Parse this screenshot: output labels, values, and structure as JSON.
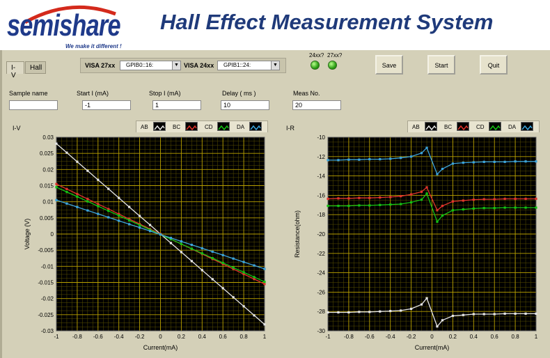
{
  "header": {
    "logo_text": "semishare",
    "logo_tagline": "We make it different !",
    "title": "Hall Effect Measurement System"
  },
  "tabs": [
    {
      "label": "I-V",
      "active": true
    },
    {
      "label": "Hall",
      "active": false
    }
  ],
  "visa": {
    "label_27": "VISA 27xx",
    "value_27": "GPIB0::16:",
    "label_24": "VISA 24xx",
    "value_24": "GPIB1::24:"
  },
  "indicators": {
    "led_label_24": "24xx?",
    "led_label_27": "27xx?",
    "led_color": "#3ec41a"
  },
  "buttons": {
    "save": "Save",
    "start": "Start",
    "quit": "Quit"
  },
  "params": {
    "sample_name_label": "Sample name",
    "sample_name_value": "",
    "start_label": "Start I (mA)",
    "start_value": "-1",
    "stop_label": "Stop I (mA)",
    "stop_value": "1",
    "delay_label": "Delay ( ms )",
    "delay_value": "10",
    "meas_label": "Meas No.",
    "meas_value": "20"
  },
  "legend": [
    "AB",
    "BC",
    "CD",
    "DA"
  ],
  "colors": {
    "AB": "#e6e6e6",
    "BC": "#e0342c",
    "CD": "#14c214",
    "DA": "#3ca4dc",
    "plot_bg": "#000000",
    "grid": "#b8a000"
  },
  "chart_data": [
    {
      "type": "line",
      "title": "I-V",
      "xlabel": "Current(mA)",
      "ylabel": "Voltage (V)",
      "xlim": [
        -1,
        1
      ],
      "ylim": [
        -0.03,
        0.03
      ],
      "xticks": [
        "-1",
        "-0.8",
        "-0.6",
        "-0.4",
        "-0.2",
        "0",
        "0.2",
        "0.4",
        "0.6",
        "0.8",
        "1"
      ],
      "yticks": [
        "0.03",
        "0.025",
        "0.02",
        "0.015",
        "0.01",
        "0.005",
        "0",
        "-0.005",
        "-0.01",
        "-0.015",
        "-0.02",
        "-0.025",
        "-0.03"
      ],
      "grid": true,
      "legend_position": "top-right",
      "series": [
        {
          "name": "AB",
          "x": [
            -1,
            1
          ],
          "y": [
            0.028,
            -0.028
          ]
        },
        {
          "name": "BC",
          "x": [
            -1,
            1
          ],
          "y": [
            0.0155,
            -0.0155
          ]
        },
        {
          "name": "CD",
          "x": [
            -1,
            1
          ],
          "y": [
            0.0145,
            -0.0148
          ]
        },
        {
          "name": "DA",
          "x": [
            -1,
            1
          ],
          "y": [
            0.0105,
            -0.0108
          ]
        }
      ]
    },
    {
      "type": "line",
      "title": "I-R",
      "xlabel": "Current(mA)",
      "ylabel": "Resistance(ohm)",
      "xlim": [
        -1,
        1
      ],
      "ylim": [
        -30,
        -8
      ],
      "xticks": [
        "-1",
        "-0.8",
        "-0.6",
        "-0.4",
        "-0.2",
        "0",
        "0.2",
        "0.4",
        "0.6",
        "0.8",
        "1"
      ],
      "yticks": [
        "-10",
        "-12",
        "-14",
        "-16",
        "-18",
        "-20",
        "-22",
        "-24",
        "-26",
        "-28",
        "-30"
      ],
      "grid": true,
      "legend_position": "top-right",
      "series": [
        {
          "name": "AB",
          "x": [
            -1,
            -0.9,
            -0.8,
            -0.7,
            -0.6,
            -0.5,
            -0.4,
            -0.3,
            -0.2,
            -0.1,
            -0.05,
            0.05,
            0.1,
            0.2,
            0.3,
            0.4,
            0.5,
            0.6,
            0.7,
            0.8,
            0.9,
            1
          ],
          "y": [
            -27.9,
            -27.9,
            -27.9,
            -27.85,
            -27.85,
            -27.8,
            -27.75,
            -27.7,
            -27.5,
            -27.0,
            -26.3,
            -29.5,
            -28.8,
            -28.3,
            -28.2,
            -28.1,
            -28.1,
            -28.1,
            -28.05,
            -28.05,
            -28.05,
            -28.05
          ]
        },
        {
          "name": "BC",
          "x": [
            -1,
            -0.9,
            -0.8,
            -0.7,
            -0.6,
            -0.5,
            -0.4,
            -0.3,
            -0.2,
            -0.1,
            -0.05,
            0.05,
            0.1,
            0.2,
            0.3,
            0.4,
            0.5,
            0.6,
            0.7,
            0.8,
            0.9,
            1
          ],
          "y": [
            -15.0,
            -14.95,
            -14.95,
            -14.9,
            -14.9,
            -14.85,
            -14.8,
            -14.7,
            -14.5,
            -14.2,
            -13.7,
            -16.3,
            -15.8,
            -15.3,
            -15.2,
            -15.1,
            -15.05,
            -15.05,
            -15.0,
            -15.0,
            -15.0,
            -15.0
          ]
        },
        {
          "name": "CD",
          "x": [
            -1,
            -0.9,
            -0.8,
            -0.7,
            -0.6,
            -0.5,
            -0.4,
            -0.3,
            -0.2,
            -0.1,
            -0.05,
            0.05,
            0.1,
            0.2,
            0.3,
            0.4,
            0.5,
            0.6,
            0.7,
            0.8,
            0.9,
            1
          ],
          "y": [
            -15.8,
            -15.8,
            -15.8,
            -15.75,
            -15.75,
            -15.7,
            -15.65,
            -15.6,
            -15.4,
            -15.1,
            -14.4,
            -17.6,
            -16.9,
            -16.3,
            -16.2,
            -16.1,
            -16.05,
            -16.05,
            -16.0,
            -16.0,
            -16.0,
            -16.0
          ]
        },
        {
          "name": "DA",
          "x": [
            -1,
            -0.9,
            -0.8,
            -0.7,
            -0.6,
            -0.5,
            -0.4,
            -0.3,
            -0.2,
            -0.1,
            -0.05,
            0.05,
            0.1,
            0.2,
            0.3,
            0.4,
            0.5,
            0.6,
            0.7,
            0.8,
            0.9,
            1
          ],
          "y": [
            -10.6,
            -10.6,
            -10.55,
            -10.55,
            -10.5,
            -10.5,
            -10.45,
            -10.35,
            -10.2,
            -9.8,
            -9.2,
            -12.2,
            -11.6,
            -11.0,
            -10.9,
            -10.85,
            -10.8,
            -10.8,
            -10.8,
            -10.75,
            -10.75,
            -10.75
          ]
        }
      ]
    }
  ]
}
